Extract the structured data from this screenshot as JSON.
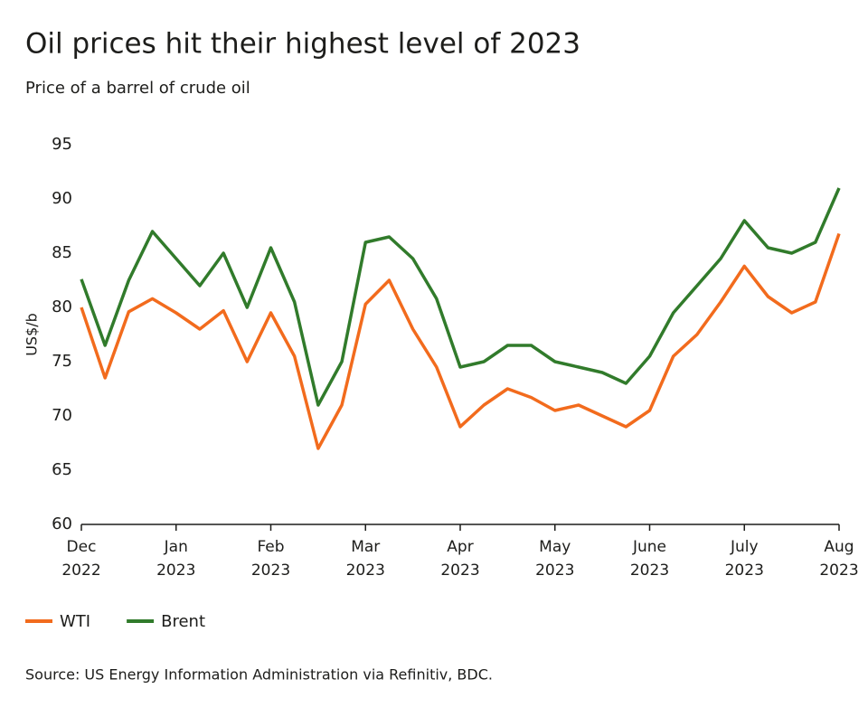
{
  "chart_data": {
    "type": "line",
    "title": "Oil prices hit their highest level of 2023",
    "subtitle": "Price of a barrel of crude oil",
    "y_label": "US$/b",
    "source": "Source: US Energy Information Administration via Refinitiv, BDC.",
    "categories": [
      "Dec\n2022",
      null,
      null,
      null,
      "Jan\n2023",
      null,
      null,
      null,
      "Feb\n2023",
      null,
      null,
      null,
      "Mar\n2023",
      null,
      null,
      null,
      "Apr\n2023",
      null,
      null,
      null,
      "May\n2023",
      null,
      null,
      null,
      "June\n2023",
      null,
      null,
      null,
      "July\n2023",
      null,
      null,
      null,
      "Aug\n2023"
    ],
    "series": [
      {
        "name": "WTI",
        "color": "#f26b1d",
        "values": [
          80,
          73.5,
          79.6,
          80.8,
          79.5,
          78,
          79.7,
          75,
          79.5,
          75.5,
          67,
          71,
          80.3,
          82.5,
          78,
          74.5,
          69,
          71,
          72.5,
          71.7,
          70.5,
          71,
          70,
          69,
          70.5,
          75.5,
          77.5,
          80.5,
          83.8,
          81,
          79.5,
          80.5,
          86.8
        ]
      },
      {
        "name": "Brent",
        "color": "#317b2b",
        "values": [
          82.6,
          76.5,
          82.5,
          87,
          84.5,
          82,
          85,
          80,
          85.5,
          80.5,
          71,
          75,
          86,
          86.5,
          84.5,
          80.8,
          74.5,
          75,
          76.5,
          76.5,
          75,
          74.5,
          74,
          73,
          75.5,
          79.5,
          82,
          84.5,
          88,
          85.5,
          85,
          86,
          91
        ]
      }
    ],
    "ylim": [
      60,
      95
    ],
    "yticks": [
      60,
      65,
      70,
      75,
      80,
      85,
      90,
      95
    ],
    "grid": false
  }
}
